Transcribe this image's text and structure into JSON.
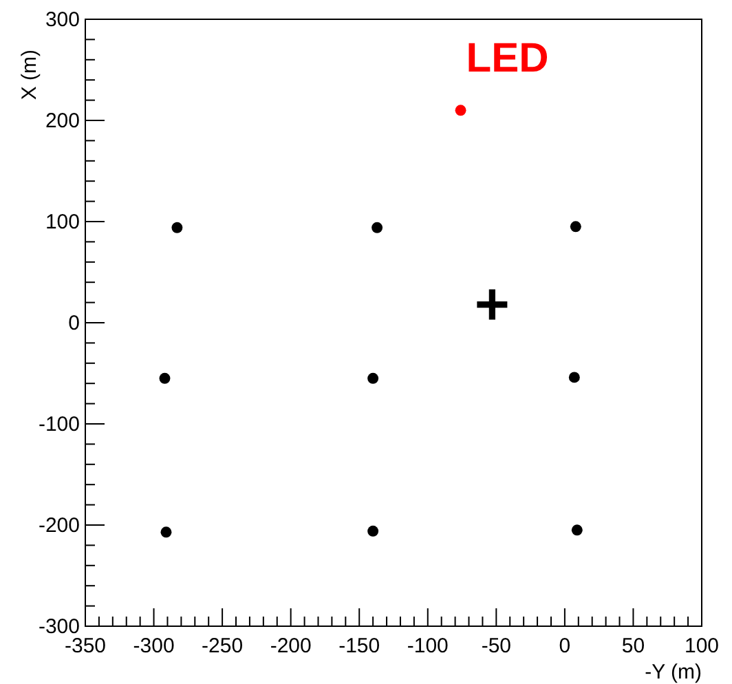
{
  "chart_data": {
    "type": "scatter",
    "xlabel": "-Y (m)",
    "ylabel": "X (m)",
    "xlim": [
      -350,
      100
    ],
    "ylim": [
      -300,
      300
    ],
    "xticks": [
      -350,
      {
        "value": -340,
        "label": null
      },
      {
        "value": -330,
        "label": null
      },
      {
        "value": -320,
        "label": null
      },
      {
        "value": -310,
        "label": null
      },
      -300,
      {
        "value": -290,
        "label": null
      },
      {
        "value": -280,
        "label": null
      },
      {
        "value": -270,
        "label": null
      },
      {
        "value": -260,
        "label": null
      },
      -250,
      {
        "value": -240,
        "label": null
      },
      {
        "value": -230,
        "label": null
      },
      {
        "value": -220,
        "label": null
      },
      {
        "value": -210,
        "label": null
      },
      -200,
      {
        "value": -190,
        "label": null
      },
      {
        "value": -180,
        "label": null
      },
      {
        "value": -170,
        "label": null
      },
      {
        "value": -160,
        "label": null
      },
      -150,
      {
        "value": -140,
        "label": null
      },
      {
        "value": -130,
        "label": null
      },
      {
        "value": -120,
        "label": null
      },
      {
        "value": -110,
        "label": null
      },
      -100,
      {
        "value": -90,
        "label": null
      },
      {
        "value": -80,
        "label": null
      },
      {
        "value": -70,
        "label": null
      },
      {
        "value": -60,
        "label": null
      },
      -50,
      {
        "value": -40,
        "label": null
      },
      {
        "value": -30,
        "label": null
      },
      {
        "value": -20,
        "label": null
      },
      {
        "value": -10,
        "label": null
      },
      0,
      {
        "value": 10,
        "label": null
      },
      {
        "value": 20,
        "label": null
      },
      {
        "value": 30,
        "label": null
      },
      {
        "value": 40,
        "label": null
      },
      50,
      {
        "value": 60,
        "label": null
      },
      {
        "value": 70,
        "label": null
      },
      {
        "value": 80,
        "label": null
      },
      {
        "value": 90,
        "label": null
      },
      100
    ],
    "yticks": [
      -300,
      {
        "value": -280,
        "label": null
      },
      {
        "value": -260,
        "label": null
      },
      {
        "value": -240,
        "label": null
      },
      {
        "value": -220,
        "label": null
      },
      -200,
      {
        "value": -180,
        "label": null
      },
      {
        "value": -160,
        "label": null
      },
      {
        "value": -140,
        "label": null
      },
      {
        "value": -120,
        "label": null
      },
      -100,
      {
        "value": -80,
        "label": null
      },
      {
        "value": -60,
        "label": null
      },
      {
        "value": -40,
        "label": null
      },
      {
        "value": -20,
        "label": null
      },
      0,
      {
        "value": 20,
        "label": null
      },
      {
        "value": 40,
        "label": null
      },
      {
        "value": 60,
        "label": null
      },
      {
        "value": 80,
        "label": null
      },
      100,
      {
        "value": 120,
        "label": null
      },
      {
        "value": 140,
        "label": null
      },
      {
        "value": 160,
        "label": null
      },
      {
        "value": 180,
        "label": null
      },
      200,
      {
        "value": 220,
        "label": null
      },
      {
        "value": 240,
        "label": null
      },
      {
        "value": 260,
        "label": null
      },
      {
        "value": 280,
        "label": null
      },
      300
    ],
    "grid": false,
    "series": [
      {
        "color": "#000000",
        "marker": "circle",
        "x": [
          -283,
          -137,
          8,
          -292,
          -140,
          7,
          -291,
          -140,
          9
        ],
        "values": [
          94,
          94,
          95,
          -55,
          -55,
          -54,
          -207,
          -206,
          -205
        ]
      },
      {
        "name": "LED",
        "color": "#ff0000",
        "marker": "circle",
        "x": [
          -76
        ],
        "values": [
          210
        ]
      },
      {
        "color": "#000000",
        "marker": "cross",
        "x": [
          -53
        ],
        "values": [
          18
        ]
      }
    ]
  }
}
